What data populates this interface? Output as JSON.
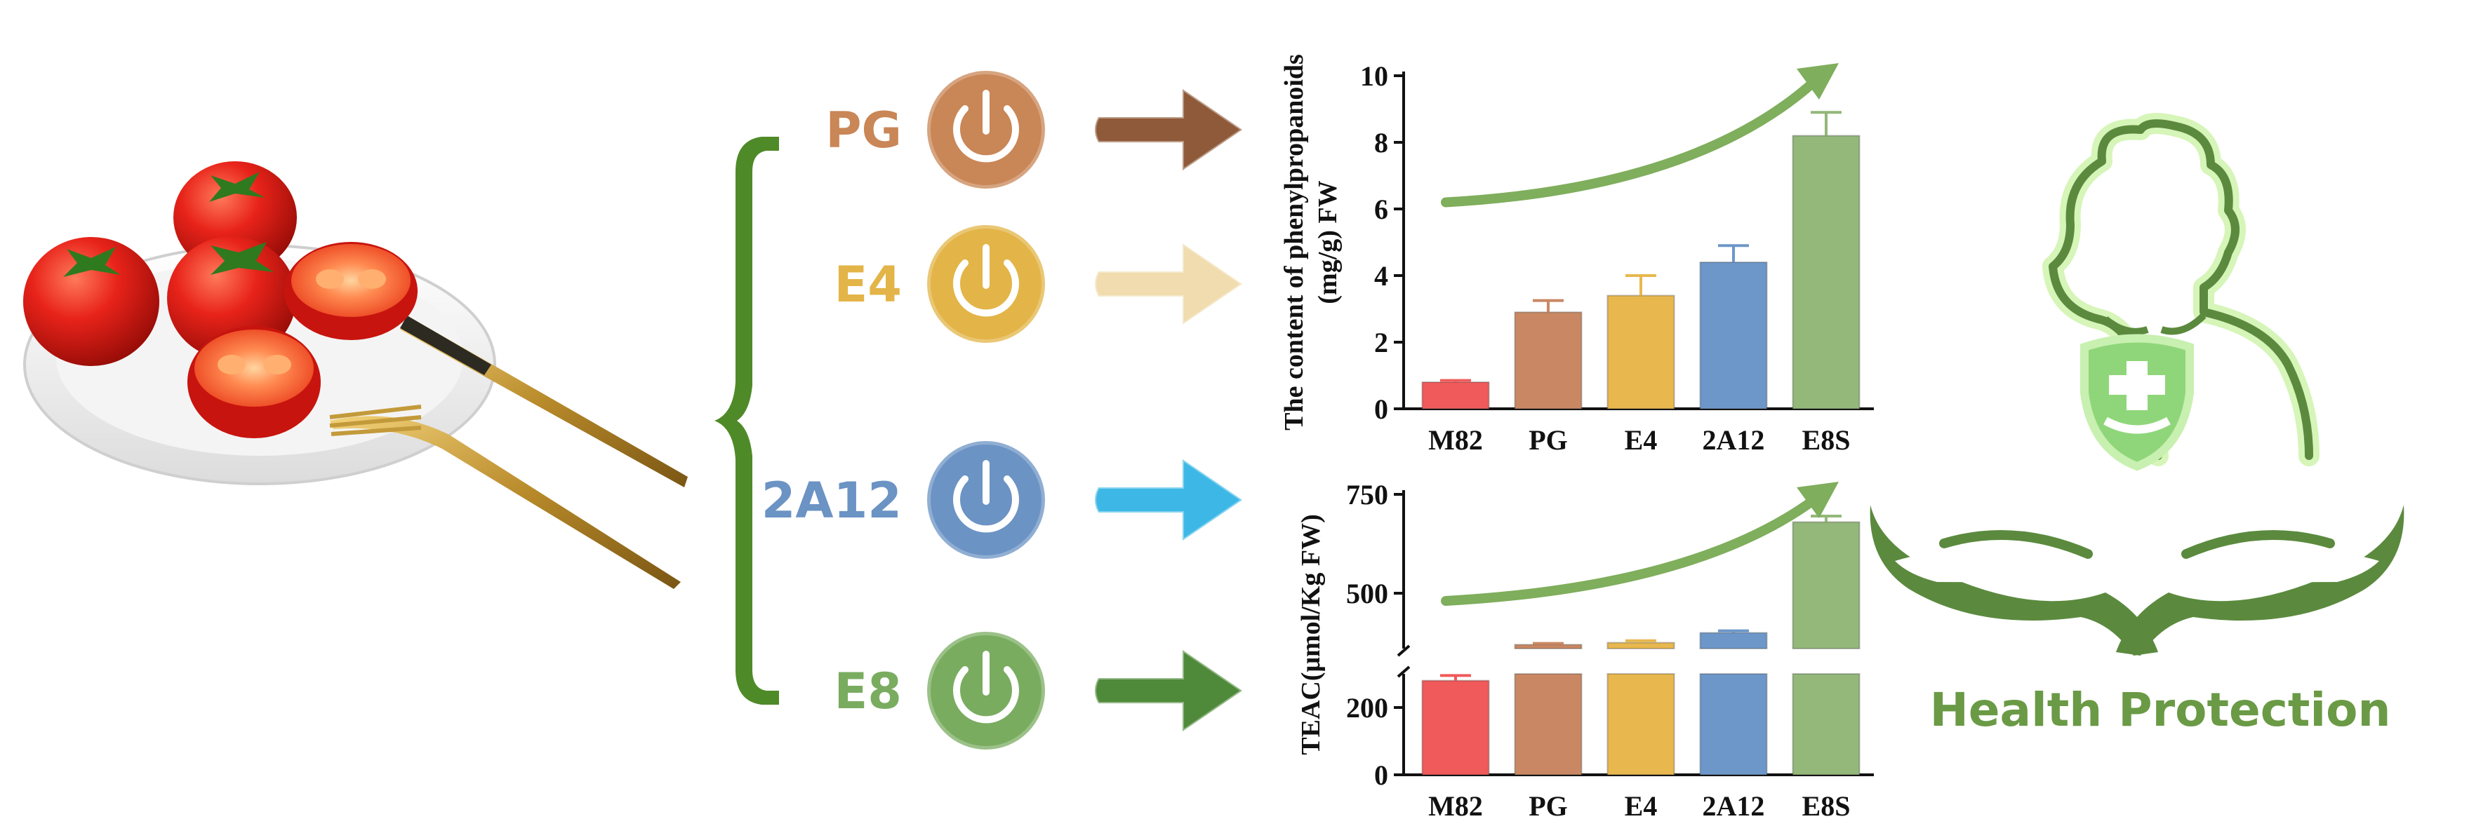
{
  "genes": [
    {
      "label": "PG",
      "color": "#c98656",
      "arrow_color": "#8f5a3a"
    },
    {
      "label": "E4",
      "color": "#e3b447",
      "arrow_color": "#f0dcae"
    },
    {
      "label": "2A12",
      "color": "#6b93c4",
      "arrow_color": "#3db8e6"
    },
    {
      "label": "E8",
      "color": "#7aac60",
      "arrow_color": "#4f8a3a"
    }
  ],
  "brace_color": "#4f8a28",
  "health": {
    "label": "Health Protection",
    "color": "#6a9a45"
  },
  "chart_data": [
    {
      "type": "bar",
      "title": "",
      "xlabel": "",
      "ylabel": "The content of phenylpropanoids (mg/g) FW",
      "ylabel_lines": [
        "The content of phenylpropanoids",
        "(mg/g) FW"
      ],
      "categories": [
        "M82",
        "PG",
        "E4",
        "2A12",
        "E8S"
      ],
      "values": [
        0.8,
        2.9,
        3.4,
        4.4,
        8.2
      ],
      "errors": [
        0.05,
        0.35,
        0.6,
        0.5,
        0.7
      ],
      "colors": [
        "#f05a5a",
        "#c98863",
        "#e8b84f",
        "#6d97c9",
        "#93b87a"
      ],
      "ylim": [
        0,
        10
      ],
      "yticks": [
        "0",
        "2",
        "4",
        "6",
        "8",
        "10"
      ],
      "trend_arrow": true
    },
    {
      "type": "bar",
      "title": "",
      "xlabel": "",
      "ylabel": "TEAC(μmol/Kg FW)",
      "categories": [
        "M82",
        "PG",
        "E4",
        "2A12",
        "E8S"
      ],
      "values": [
        280,
        370,
        375,
        400,
        680
      ],
      "errors": [
        15,
        3,
        5,
        5,
        15
      ],
      "colors": [
        "#f05a5a",
        "#c98863",
        "#e8b84f",
        "#6d97c9",
        "#93b87a"
      ],
      "ylim": [
        0,
        750
      ],
      "axis_break": [
        300,
        360
      ],
      "yticks": [
        "0",
        "200",
        "500",
        "750"
      ],
      "trend_arrow": true
    }
  ]
}
